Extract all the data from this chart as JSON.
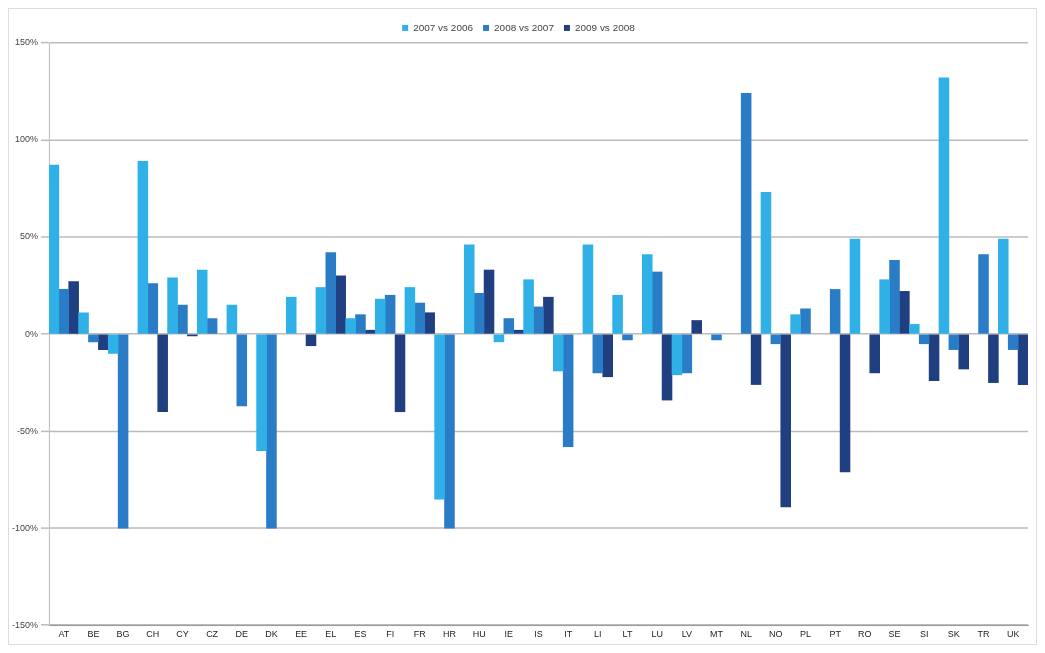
{
  "chart_data": {
    "type": "bar",
    "categories": [
      "AT",
      "BE",
      "BG",
      "CH",
      "CY",
      "CZ",
      "DE",
      "DK",
      "EE",
      "EL",
      "ES",
      "FI",
      "FR",
      "HR",
      "HU",
      "IE",
      "IS",
      "IT",
      "LI",
      "LT",
      "LU",
      "LV",
      "MT",
      "NL",
      "NO",
      "PL",
      "PT",
      "RO",
      "SE",
      "SI",
      "SK",
      "TR",
      "UK"
    ],
    "series": [
      {
        "name": "2007 vs 2006",
        "color": "#2fb0e6",
        "values": [
          87,
          11,
          -10,
          89,
          29,
          33,
          15,
          -60,
          19,
          24,
          8,
          18,
          24,
          -85,
          46,
          -4,
          28,
          -19,
          46,
          20,
          41,
          -21,
          null,
          null,
          73,
          10,
          null,
          49,
          28,
          5,
          132,
          null,
          49
        ]
      },
      {
        "name": "2008 vs 2007",
        "color": "#2a7cc7",
        "values": [
          23,
          -4,
          -100,
          26,
          15,
          8,
          -37,
          -100,
          null,
          42,
          10,
          20,
          16,
          -100,
          21,
          8,
          14,
          -58,
          -20,
          -3,
          32,
          -20,
          -3,
          124,
          -5,
          13,
          23,
          null,
          38,
          -5,
          -8,
          41,
          -8
        ]
      },
      {
        "name": "2009 vs 2008",
        "color": "#1f3f80",
        "values": [
          27,
          -8,
          null,
          -40,
          -1,
          null,
          null,
          null,
          -6,
          30,
          2,
          -40,
          11,
          null,
          33,
          2,
          19,
          null,
          -22,
          null,
          -34,
          7,
          null,
          -26,
          -89,
          null,
          -71,
          -20,
          22,
          -24,
          -18,
          -25,
          -26
        ]
      }
    ],
    "ylim": [
      -150,
      150
    ],
    "yticks": [
      {
        "value": -150,
        "label": "-150%"
      },
      {
        "value": -100,
        "label": "-100%"
      },
      {
        "value": -50,
        "label": "-50%"
      },
      {
        "value": 0,
        "label": "0%"
      },
      {
        "value": 50,
        "label": "50%"
      },
      {
        "value": 100,
        "label": "100%"
      },
      {
        "value": 150,
        "label": "150%"
      }
    ],
    "grid": "y",
    "legend": "top"
  }
}
